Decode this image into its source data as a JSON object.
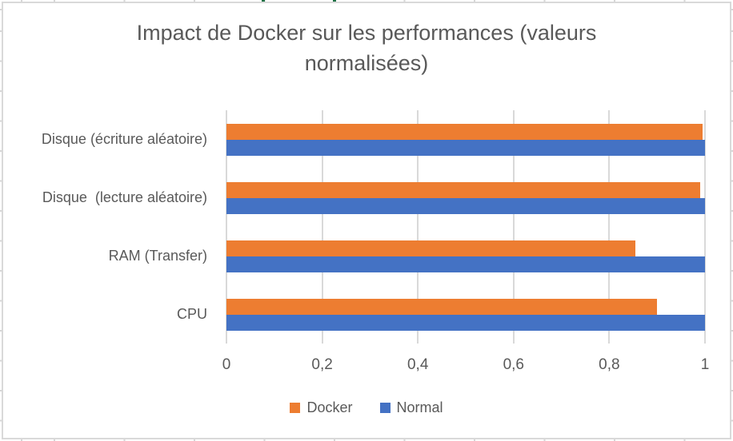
{
  "chart_data": {
    "type": "bar",
    "orientation": "horizontal",
    "title": "Impact de Docker sur les performances (valeurs normalisées)",
    "categories": [
      "Disque (écriture aléatoire)",
      "Disque  (lecture aléatoire)",
      "RAM (Transfer)",
      "CPU"
    ],
    "series": [
      {
        "name": "Docker",
        "color": "#ED7D31",
        "values": [
          0.995,
          0.99,
          0.855,
          0.9
        ]
      },
      {
        "name": "Normal",
        "color": "#4472C4",
        "values": [
          1.0,
          1.0,
          1.0,
          1.0
        ]
      }
    ],
    "xlim": [
      0,
      1
    ],
    "xticks": [
      {
        "value": 0,
        "label": "0"
      },
      {
        "value": 0.2,
        "label": "0,2"
      },
      {
        "value": 0.4,
        "label": "0,4"
      },
      {
        "value": 0.6,
        "label": "0,6"
      },
      {
        "value": 0.8,
        "label": "0,8"
      },
      {
        "value": 1,
        "label": "1"
      }
    ],
    "grid": true,
    "legend_position": "bottom",
    "colors": {
      "title_text": "#595959",
      "axis_text": "#595959",
      "gridline": "#D9D9D9",
      "chart_border": "#D9D9D9"
    }
  }
}
